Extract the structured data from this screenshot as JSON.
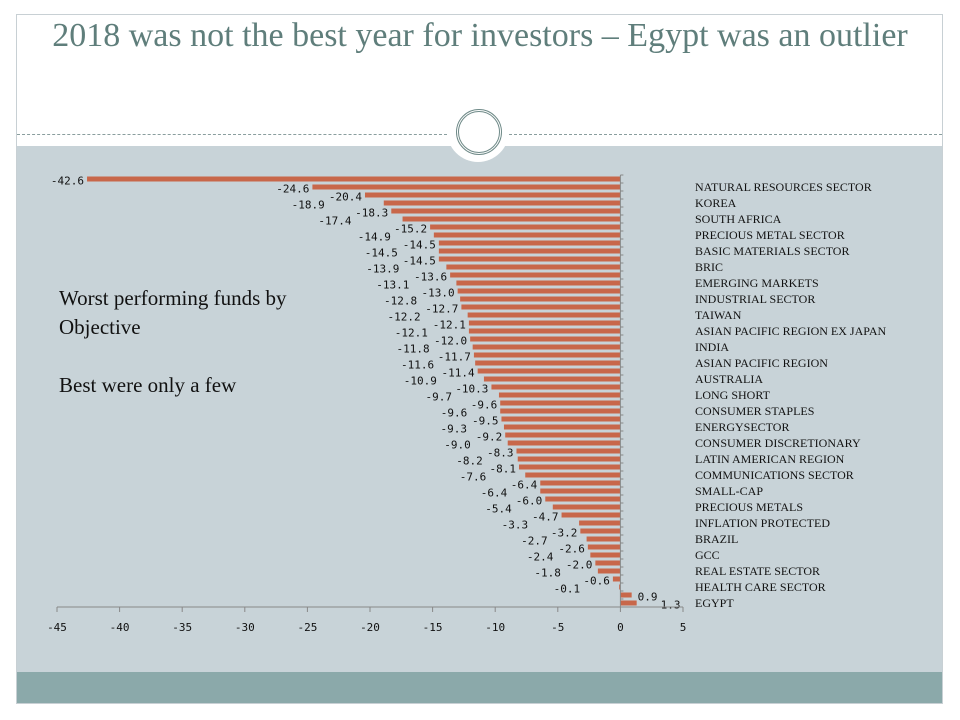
{
  "slide": {
    "title": "2018 was not the best year for investors – Egypt was an outlier",
    "text_line1": "Worst performing funds by",
    "text_line2": "Objective",
    "text_line3": "Best  were only a few"
  },
  "chart_data": {
    "type": "bar",
    "orientation": "horizontal",
    "bar_color": "#c8674a",
    "values": [
      -42.6,
      -24.6,
      -20.4,
      -18.9,
      -18.3,
      -17.4,
      -15.2,
      -14.9,
      -14.5,
      -14.5,
      -14.5,
      -13.9,
      -13.6,
      -13.1,
      -13.0,
      -12.8,
      -12.7,
      -12.2,
      -12.1,
      -12.1,
      -12.0,
      -11.8,
      -11.7,
      -11.6,
      -11.4,
      -10.9,
      -10.3,
      -9.7,
      -9.6,
      -9.6,
      -9.5,
      -9.3,
      -9.2,
      -9.0,
      -8.3,
      -8.2,
      -8.1,
      -7.6,
      -6.4,
      -6.4,
      -6.0,
      -5.4,
      -4.7,
      -3.3,
      -3.2,
      -2.7,
      -2.6,
      -2.4,
      -2.0,
      -1.8,
      -0.6,
      -0.1,
      0.9,
      1.3
    ],
    "visible_category_labels": [
      "NATURAL RESOURCES SECTOR",
      "KOREA",
      "SOUTH AFRICA",
      "PRECIOUS METAL SECTOR",
      "BASIC MATERIALS SECTOR",
      "BRIC",
      "EMERGING MARKETS",
      "INDUSTRIAL SECTOR",
      "TAIWAN",
      "ASIAN PACIFIC REGION EX JAPAN",
      "INDIA",
      "ASIAN PACIFIC REGION",
      "AUSTRALIA",
      "LONG SHORT",
      "CONSUMER STAPLES",
      "ENERGYSECTOR",
      "CONSUMER DISCRETIONARY",
      "LATIN AMERICAN REGION",
      "COMMUNICATIONS SECTOR",
      "SMALL-CAP",
      "PRECIOUS METALS",
      "INFLATION PROTECTED",
      "BRAZIL",
      "GCC",
      "REAL ESTATE SECTOR",
      "HEALTH CARE SECTOR",
      "EGYPT"
    ],
    "xlim": [
      -45,
      5
    ],
    "xticks": [
      "-45",
      "-40",
      "-35",
      "-30",
      "-25",
      "-20",
      "-15",
      "-10",
      "-5",
      "0",
      "5"
    ],
    "title": "",
    "xlabel": "",
    "ylabel": "",
    "grid": false
  }
}
